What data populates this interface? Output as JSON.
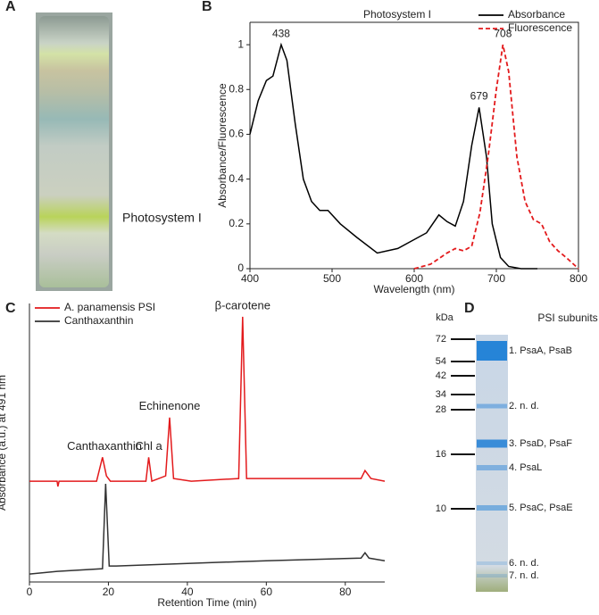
{
  "panel_labels": [
    "A",
    "B",
    "C",
    "D"
  ],
  "photo": {
    "label": "Photosystem I"
  },
  "chart_data": [
    {
      "type": "line",
      "title": "Photosystem I",
      "x_label": "Wavelength (nm)",
      "y_label": "Absorbance/Fluorescence",
      "xlim": [
        400,
        800
      ],
      "xticks": [
        400,
        500,
        600,
        700,
        800
      ],
      "ylim": [
        0,
        1.1
      ],
      "yticks": [
        0,
        0.2,
        0.4,
        0.6,
        0.8,
        1
      ],
      "legend": "top-right",
      "series": [
        {
          "name": "Absorbance",
          "color": "#000000",
          "dash": false,
          "x": [
            400,
            410,
            420,
            428,
            438,
            445,
            455,
            465,
            475,
            485,
            495,
            510,
            530,
            555,
            580,
            600,
            615,
            630,
            640,
            650,
            660,
            670,
            679,
            688,
            695,
            705,
            715,
            730,
            750
          ],
          "values": [
            0.6,
            0.75,
            0.84,
            0.86,
            1.0,
            0.93,
            0.65,
            0.4,
            0.3,
            0.26,
            0.26,
            0.2,
            0.14,
            0.07,
            0.09,
            0.13,
            0.16,
            0.24,
            0.21,
            0.19,
            0.3,
            0.55,
            0.72,
            0.5,
            0.2,
            0.05,
            0.01,
            0,
            0
          ]
        },
        {
          "name": "Fluorescence",
          "color": "#e31a1c",
          "dash": true,
          "x": [
            600,
            620,
            640,
            650,
            660,
            670,
            680,
            690,
            700,
            708,
            715,
            725,
            735,
            745,
            755,
            765,
            775,
            785,
            800
          ],
          "values": [
            0,
            0.02,
            0.07,
            0.09,
            0.08,
            0.1,
            0.25,
            0.5,
            0.8,
            1.0,
            0.88,
            0.5,
            0.3,
            0.22,
            0.2,
            0.12,
            0.08,
            0.05,
            0
          ]
        }
      ],
      "annotations": [
        {
          "label": "438",
          "x": 438,
          "y": 1.0
        },
        {
          "label": "679",
          "x": 679,
          "y": 0.72
        },
        {
          "label": "708",
          "x": 708,
          "y": 1.0
        }
      ]
    },
    {
      "type": "line",
      "x_label": "Retention Time (min)",
      "y_label": "Absorbance (a.u.) at 491 nm",
      "xlim": [
        0,
        90
      ],
      "xticks": [
        0,
        20,
        40,
        60,
        80
      ],
      "ylim": [
        0,
        1.05
      ],
      "legend": "top-left",
      "series": [
        {
          "name": "A. panamensis PSI",
          "color": "#e31a1c",
          "dash": false,
          "x": [
            0,
            7,
            7.2,
            7.5,
            17,
            18.5,
            19.5,
            20.5,
            29.5,
            30.2,
            31,
            34.5,
            35.5,
            36.5,
            41,
            53,
            54,
            55,
            84,
            85,
            86.5,
            90
          ],
          "values": [
            0.38,
            0.38,
            0.36,
            0.38,
            0.38,
            0.47,
            0.4,
            0.38,
            0.38,
            0.47,
            0.38,
            0.4,
            0.62,
            0.39,
            0.38,
            0.39,
            1.0,
            0.39,
            0.39,
            0.42,
            0.39,
            0.38
          ]
        },
        {
          "name": "Canthaxanthin",
          "color": "#333333",
          "dash": false,
          "x": [
            0,
            7,
            18.5,
            19.3,
            20.2,
            22,
            40,
            60,
            84,
            85,
            86,
            90
          ],
          "values": [
            0.03,
            0.04,
            0.05,
            0.37,
            0.06,
            0.06,
            0.07,
            0.08,
            0.09,
            0.11,
            0.09,
            0.08
          ]
        }
      ],
      "annotations": [
        {
          "label": "Canthaxanthin",
          "x": 19,
          "y": 0.47
        },
        {
          "label": "Chl a",
          "x": 30.2,
          "y": 0.47
        },
        {
          "label": "Echinenone",
          "x": 35.5,
          "y": 0.62
        },
        {
          "label": "β-carotene",
          "x": 54,
          "y": 1.0
        }
      ]
    }
  ],
  "gel": {
    "title": "PSI subunits",
    "marker_label": "kDa",
    "markers": [
      72,
      54,
      42,
      34,
      28,
      16,
      10
    ],
    "bands": [
      "1. PsaA, PsaB",
      "2. n. d.",
      "3. PsaD, PsaF",
      "4. PsaL",
      "5. PsaC, PsaE",
      "6. n. d.",
      "7. n. d."
    ]
  }
}
